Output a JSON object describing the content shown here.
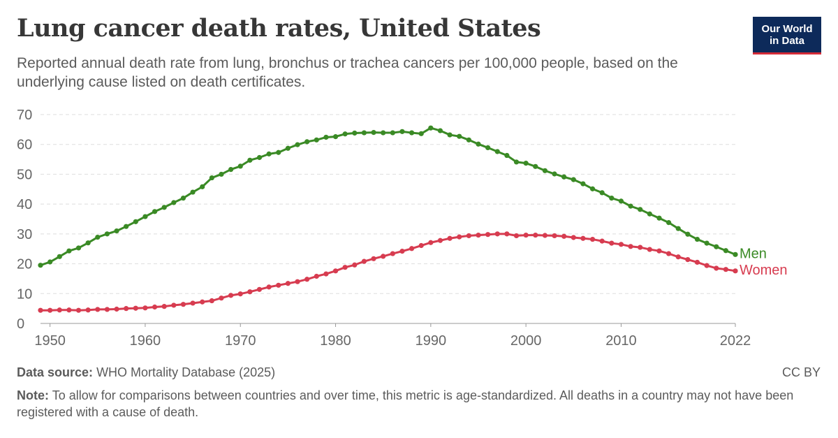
{
  "header": {
    "title": "Lung cancer death rates, United States",
    "subtitle": "Reported annual death rate from lung, bronchus or trachea cancers per 100,000 people, based on the underlying cause listed on death certificates."
  },
  "logo": {
    "line1": "Our World",
    "line2": "in Data"
  },
  "footer": {
    "source_label": "Data source:",
    "source_text": "WHO Mortality Database (2025)",
    "license": "CC BY",
    "note_label": "Note:",
    "note_text": "To allow for comparisons between countries and over time, this metric is age-standardized. All deaths in a country may not have been registered with a cause of death."
  },
  "chart_data": {
    "type": "line",
    "title": "Lung cancer death rates, United States",
    "xlabel": "",
    "ylabel": "",
    "xlim": [
      1949,
      2022
    ],
    "ylim": [
      0,
      70
    ],
    "y_ticks": [
      0,
      10,
      20,
      30,
      40,
      50,
      60,
      70
    ],
    "x_ticks": [
      1950,
      1960,
      1970,
      1980,
      1990,
      2000,
      2010,
      2022
    ],
    "grid": "horizontal dashed",
    "legend": "inline labels at line ends",
    "x": [
      1949,
      1950,
      1951,
      1952,
      1953,
      1954,
      1955,
      1956,
      1957,
      1958,
      1959,
      1960,
      1961,
      1962,
      1963,
      1964,
      1965,
      1966,
      1967,
      1968,
      1969,
      1970,
      1971,
      1972,
      1973,
      1974,
      1975,
      1976,
      1977,
      1978,
      1979,
      1980,
      1981,
      1982,
      1983,
      1984,
      1985,
      1986,
      1987,
      1988,
      1989,
      1990,
      1991,
      1992,
      1993,
      1994,
      1995,
      1996,
      1997,
      1998,
      1999,
      2000,
      2001,
      2002,
      2003,
      2004,
      2005,
      2006,
      2007,
      2008,
      2009,
      2010,
      2011,
      2012,
      2013,
      2014,
      2015,
      2016,
      2017,
      2018,
      2019,
      2020,
      2021,
      2022
    ],
    "series": [
      {
        "name": "Men",
        "color": "#3a8a25",
        "values": [
          19.5,
          20.6,
          22.4,
          24.3,
          25.3,
          27.0,
          28.9,
          30.0,
          31.0,
          32.5,
          34.1,
          35.8,
          37.5,
          38.9,
          40.5,
          42.0,
          44.0,
          45.8,
          48.8,
          50.0,
          51.6,
          52.7,
          54.7,
          55.6,
          56.8,
          57.3,
          58.7,
          59.9,
          60.9,
          61.5,
          62.4,
          62.6,
          63.5,
          63.8,
          63.9,
          64.0,
          63.9,
          63.9,
          64.3,
          63.9,
          63.6,
          65.5,
          64.6,
          63.2,
          62.7,
          61.5,
          60.1,
          58.9,
          57.6,
          56.3,
          54.1,
          53.7,
          52.6,
          51.2,
          50.1,
          49.1,
          48.2,
          46.8,
          45.1,
          43.8,
          42.0,
          41.0,
          39.3,
          38.2,
          36.7,
          35.3,
          33.8,
          31.8,
          29.9,
          28.2,
          26.9,
          25.7,
          24.4,
          23.1
        ]
      },
      {
        "name": "Women",
        "color": "#d73c50",
        "values": [
          4.4,
          4.4,
          4.5,
          4.5,
          4.4,
          4.5,
          4.7,
          4.7,
          4.8,
          5.0,
          5.1,
          5.2,
          5.5,
          5.7,
          6.1,
          6.4,
          6.8,
          7.2,
          7.6,
          8.5,
          9.4,
          9.9,
          10.6,
          11.4,
          12.2,
          12.8,
          13.4,
          14.0,
          14.8,
          15.8,
          16.6,
          17.6,
          18.8,
          19.6,
          20.8,
          21.7,
          22.5,
          23.4,
          24.2,
          25.1,
          26.1,
          27.1,
          27.8,
          28.5,
          29.0,
          29.4,
          29.6,
          29.8,
          30.0,
          30.0,
          29.4,
          29.6,
          29.6,
          29.5,
          29.4,
          29.2,
          28.8,
          28.5,
          28.2,
          27.6,
          26.9,
          26.5,
          25.8,
          25.5,
          24.8,
          24.3,
          23.4,
          22.3,
          21.4,
          20.5,
          19.4,
          18.5,
          18.1,
          17.6
        ]
      }
    ]
  }
}
